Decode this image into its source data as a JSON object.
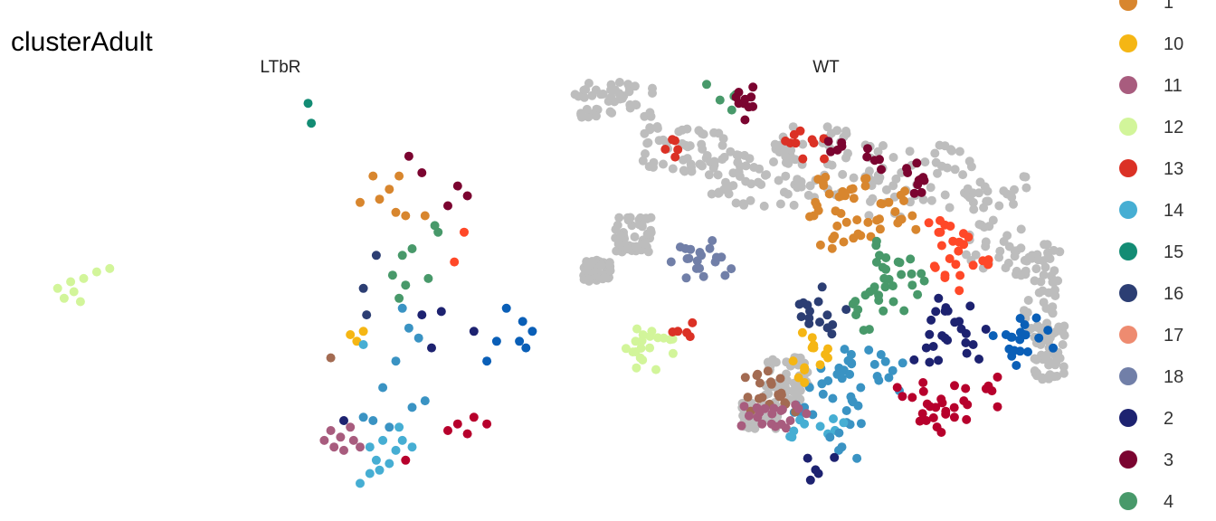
{
  "chart_data": {
    "type": "scatter",
    "title": "clusterAdult",
    "facets": [
      "LTbR",
      "WT"
    ],
    "xlabel": "",
    "ylabel": "",
    "grid": false,
    "background_color": "#bdbdbd",
    "legend_position": "right",
    "legend": [
      {
        "label": "1",
        "color": "#d8862e"
      },
      {
        "label": "10",
        "color": "#f5b614"
      },
      {
        "label": "11",
        "color": "#a85c7e"
      },
      {
        "label": "12",
        "color": "#d2f59a"
      },
      {
        "label": "13",
        "color": "#db3125"
      },
      {
        "label": "14",
        "color": "#46aed3"
      },
      {
        "label": "15",
        "color": "#138c74"
      },
      {
        "label": "16",
        "color": "#2c3e73"
      },
      {
        "label": "17",
        "color": "#ee8b70"
      },
      {
        "label": "18",
        "color": "#717fa8"
      },
      {
        "label": "2",
        "color": "#1d2270"
      },
      {
        "label": "3",
        "color": "#7b0430"
      },
      {
        "label": "4",
        "color": "#48996a"
      }
    ],
    "extra_colors": {
      "cluster_5": "#3a93c3",
      "cluster_6": "#0a5fb7",
      "cluster_7": "#b7002c",
      "cluster_8": "#a36b52",
      "cluster_9": "#ff4828"
    },
    "panels": [
      {
        "name": "LTbR",
        "points": [
          {
            "x": 10.5,
            "y": 9.2,
            "c": "#138c74"
          },
          {
            "x": 10.6,
            "y": 8.6,
            "c": "#138c74"
          },
          {
            "x": 2.8,
            "y": 3.6,
            "c": "#d2f59a"
          },
          {
            "x": 3.0,
            "y": 3.3,
            "c": "#d2f59a"
          },
          {
            "x": 3.3,
            "y": 3.5,
            "c": "#d2f59a"
          },
          {
            "x": 3.6,
            "y": 3.9,
            "c": "#d2f59a"
          },
          {
            "x": 4.0,
            "y": 4.1,
            "c": "#d2f59a"
          },
          {
            "x": 4.4,
            "y": 4.2,
            "c": "#d2f59a"
          },
          {
            "x": 3.5,
            "y": 3.2,
            "c": "#d2f59a"
          },
          {
            "x": 3.2,
            "y": 3.8,
            "c": "#d2f59a"
          },
          {
            "x": 13.6,
            "y": 7.6,
            "c": "#7b0430"
          },
          {
            "x": 14.0,
            "y": 7.1,
            "c": "#7b0430"
          },
          {
            "x": 15.1,
            "y": 6.7,
            "c": "#7b0430"
          },
          {
            "x": 15.4,
            "y": 6.4,
            "c": "#7b0430"
          },
          {
            "x": 14.8,
            "y": 6.1,
            "c": "#7b0430"
          },
          {
            "x": 12.5,
            "y": 7.0,
            "c": "#d8862e"
          },
          {
            "x": 13.3,
            "y": 7.0,
            "c": "#d8862e"
          },
          {
            "x": 13.0,
            "y": 6.6,
            "c": "#d8862e"
          },
          {
            "x": 12.1,
            "y": 6.2,
            "c": "#d8862e"
          },
          {
            "x": 12.7,
            "y": 6.3,
            "c": "#d8862e"
          },
          {
            "x": 13.5,
            "y": 5.8,
            "c": "#d8862e"
          },
          {
            "x": 14.1,
            "y": 5.8,
            "c": "#d8862e"
          },
          {
            "x": 13.2,
            "y": 5.9,
            "c": "#d8862e"
          },
          {
            "x": 14.4,
            "y": 5.5,
            "c": "#48996a"
          },
          {
            "x": 14.5,
            "y": 5.3,
            "c": "#48996a"
          },
          {
            "x": 13.7,
            "y": 4.8,
            "c": "#48996a"
          },
          {
            "x": 13.4,
            "y": 4.6,
            "c": "#48996a"
          },
          {
            "x": 13.1,
            "y": 4.0,
            "c": "#48996a"
          },
          {
            "x": 13.5,
            "y": 3.7,
            "c": "#48996a"
          },
          {
            "x": 14.2,
            "y": 3.9,
            "c": "#48996a"
          },
          {
            "x": 13.3,
            "y": 3.3,
            "c": "#48996a"
          },
          {
            "x": 12.6,
            "y": 4.6,
            "c": "#2c3e73"
          },
          {
            "x": 12.2,
            "y": 3.6,
            "c": "#2c3e73"
          },
          {
            "x": 12.3,
            "y": 2.8,
            "c": "#2c3e73"
          },
          {
            "x": 15.3,
            "y": 5.3,
            "c": "#ff4828"
          },
          {
            "x": 15.0,
            "y": 4.4,
            "c": "#ff4828"
          },
          {
            "x": 11.8,
            "y": 2.2,
            "c": "#f5b614"
          },
          {
            "x": 12.0,
            "y": 2.0,
            "c": "#f5b614"
          },
          {
            "x": 12.2,
            "y": 2.3,
            "c": "#f5b614"
          },
          {
            "x": 11.2,
            "y": 1.5,
            "c": "#a36b52"
          },
          {
            "x": 14.0,
            "y": 2.8,
            "c": "#1d2270"
          },
          {
            "x": 14.6,
            "y": 2.9,
            "c": "#1d2270"
          },
          {
            "x": 15.6,
            "y": 2.3,
            "c": "#1d2270"
          },
          {
            "x": 14.3,
            "y": 1.8,
            "c": "#1d2270"
          },
          {
            "x": 11.6,
            "y": -0.4,
            "c": "#1d2270"
          },
          {
            "x": 13.4,
            "y": 3.0,
            "c": "#3a93c3"
          },
          {
            "x": 13.6,
            "y": 2.4,
            "c": "#3a93c3"
          },
          {
            "x": 13.9,
            "y": 2.1,
            "c": "#3a93c3"
          },
          {
            "x": 13.2,
            "y": 1.4,
            "c": "#3a93c3"
          },
          {
            "x": 12.8,
            "y": 0.6,
            "c": "#3a93c3"
          },
          {
            "x": 13.7,
            "y": 0.0,
            "c": "#3a93c3"
          },
          {
            "x": 12.5,
            "y": -0.4,
            "c": "#3a93c3"
          },
          {
            "x": 13.0,
            "y": -0.6,
            "c": "#3a93c3"
          },
          {
            "x": 12.2,
            "y": -0.3,
            "c": "#3a93c3"
          },
          {
            "x": 14.1,
            "y": 0.2,
            "c": "#3a93c3"
          },
          {
            "x": 14.8,
            "y": -0.7,
            "c": "#b7002c"
          },
          {
            "x": 15.1,
            "y": -0.5,
            "c": "#b7002c"
          },
          {
            "x": 15.4,
            "y": -0.8,
            "c": "#b7002c"
          },
          {
            "x": 16.0,
            "y": -0.5,
            "c": "#b7002c"
          },
          {
            "x": 15.6,
            "y": -0.3,
            "c": "#b7002c"
          },
          {
            "x": 13.5,
            "y": -1.6,
            "c": "#b7002c"
          },
          {
            "x": 17.1,
            "y": 2.6,
            "c": "#0a5fb7"
          },
          {
            "x": 17.4,
            "y": 2.3,
            "c": "#0a5fb7"
          },
          {
            "x": 17.2,
            "y": 1.8,
            "c": "#0a5fb7"
          },
          {
            "x": 17.0,
            "y": 2.0,
            "c": "#0a5fb7"
          },
          {
            "x": 16.6,
            "y": 3.0,
            "c": "#0a5fb7"
          },
          {
            "x": 16.3,
            "y": 2.0,
            "c": "#0a5fb7"
          },
          {
            "x": 16.0,
            "y": 1.4,
            "c": "#0a5fb7"
          },
          {
            "x": 11.0,
            "y": -1.0,
            "c": "#a85c7e"
          },
          {
            "x": 11.3,
            "y": -1.2,
            "c": "#a85c7e"
          },
          {
            "x": 11.6,
            "y": -1.3,
            "c": "#a85c7e"
          },
          {
            "x": 11.9,
            "y": -1.0,
            "c": "#a85c7e"
          },
          {
            "x": 11.2,
            "y": -0.7,
            "c": "#a85c7e"
          },
          {
            "x": 11.8,
            "y": -0.6,
            "c": "#a85c7e"
          },
          {
            "x": 12.1,
            "y": -1.2,
            "c": "#a85c7e"
          },
          {
            "x": 11.5,
            "y": -0.9,
            "c": "#a85c7e"
          },
          {
            "x": 12.4,
            "y": -1.2,
            "c": "#46aed3"
          },
          {
            "x": 12.8,
            "y": -1.0,
            "c": "#46aed3"
          },
          {
            "x": 13.2,
            "y": -1.3,
            "c": "#46aed3"
          },
          {
            "x": 12.6,
            "y": -1.6,
            "c": "#46aed3"
          },
          {
            "x": 13.0,
            "y": -1.7,
            "c": "#46aed3"
          },
          {
            "x": 12.4,
            "y": -2.0,
            "c": "#46aed3"
          },
          {
            "x": 12.1,
            "y": -2.3,
            "c": "#46aed3"
          },
          {
            "x": 12.7,
            "y": -1.9,
            "c": "#46aed3"
          },
          {
            "x": 13.4,
            "y": -1.0,
            "c": "#46aed3"
          },
          {
            "x": 13.7,
            "y": -1.2,
            "c": "#46aed3"
          },
          {
            "x": 13.3,
            "y": -0.6,
            "c": "#46aed3"
          },
          {
            "x": 12.2,
            "y": 1.9,
            "c": "#46aed3"
          }
        ]
      },
      {
        "name": "WT",
        "points": [
          {
            "x": 14.2,
            "y": 9.3,
            "c": "#48996a"
          },
          {
            "x": 14.6,
            "y": 9.2,
            "c": "#7b0430"
          },
          {
            "x": 14.9,
            "y": 9.1,
            "c": "#7b0430"
          },
          {
            "x": 13.3,
            "y": 7.8,
            "c": "#db3125"
          },
          {
            "x": 15.7,
            "y": 8.0,
            "c": "#db3125"
          },
          {
            "x": 16.2,
            "y": 8.0,
            "c": "#db3125"
          },
          {
            "x": 16.8,
            "y": 7.9,
            "c": "#7b0430"
          },
          {
            "x": 17.6,
            "y": 7.5,
            "c": "#7b0430"
          },
          {
            "x": 18.2,
            "y": 7.1,
            "c": "#7b0430"
          },
          {
            "x": 18.5,
            "y": 6.5,
            "c": "#7b0430"
          },
          {
            "x": 16.4,
            "y": 6.8,
            "c": "#d8862e"
          },
          {
            "x": 16.8,
            "y": 6.4,
            "c": "#d8862e"
          },
          {
            "x": 17.3,
            "y": 6.7,
            "c": "#d8862e"
          },
          {
            "x": 17.8,
            "y": 6.2,
            "c": "#d8862e"
          },
          {
            "x": 16.2,
            "y": 5.8,
            "c": "#d8862e"
          },
          {
            "x": 16.9,
            "y": 5.6,
            "c": "#d8862e"
          },
          {
            "x": 17.6,
            "y": 5.7,
            "c": "#d8862e"
          },
          {
            "x": 18.3,
            "y": 5.8,
            "c": "#d8862e"
          },
          {
            "x": 16.6,
            "y": 5.1,
            "c": "#d8862e"
          },
          {
            "x": 17.2,
            "y": 5.2,
            "c": "#d8862e"
          },
          {
            "x": 18.9,
            "y": 5.3,
            "c": "#ff4828"
          },
          {
            "x": 19.3,
            "y": 5.0,
            "c": "#ff4828"
          },
          {
            "x": 19.1,
            "y": 4.5,
            "c": "#ff4828"
          },
          {
            "x": 19.6,
            "y": 4.3,
            "c": "#ff4828"
          },
          {
            "x": 19.0,
            "y": 4.0,
            "c": "#ff4828"
          },
          {
            "x": 17.6,
            "y": 4.6,
            "c": "#48996a"
          },
          {
            "x": 18.0,
            "y": 4.4,
            "c": "#48996a"
          },
          {
            "x": 17.7,
            "y": 3.9,
            "c": "#48996a"
          },
          {
            "x": 18.3,
            "y": 3.7,
            "c": "#48996a"
          },
          {
            "x": 17.9,
            "y": 3.2,
            "c": "#48996a"
          },
          {
            "x": 17.3,
            "y": 3.4,
            "c": "#48996a"
          },
          {
            "x": 17.1,
            "y": 2.8,
            "c": "#48996a"
          },
          {
            "x": 16.3,
            "y": 3.2,
            "c": "#2c3e73"
          },
          {
            "x": 16.1,
            "y": 2.7,
            "c": "#2c3e73"
          },
          {
            "x": 16.6,
            "y": 2.5,
            "c": "#2c3e73"
          },
          {
            "x": 18.8,
            "y": 2.9,
            "c": "#1d2270"
          },
          {
            "x": 19.3,
            "y": 2.6,
            "c": "#1d2270"
          },
          {
            "x": 19.0,
            "y": 2.1,
            "c": "#1d2270"
          },
          {
            "x": 19.6,
            "y": 1.9,
            "c": "#1d2270"
          },
          {
            "x": 18.6,
            "y": 1.8,
            "c": "#1d2270"
          },
          {
            "x": 20.7,
            "y": 2.5,
            "c": "#0a5fb7"
          },
          {
            "x": 21.0,
            "y": 2.1,
            "c": "#0a5fb7"
          },
          {
            "x": 20.6,
            "y": 1.7,
            "c": "#0a5fb7"
          },
          {
            "x": 20.3,
            "y": 2.2,
            "c": "#0a5fb7"
          },
          {
            "x": 17.0,
            "y": 1.6,
            "c": "#3a93c3"
          },
          {
            "x": 17.5,
            "y": 1.3,
            "c": "#3a93c3"
          },
          {
            "x": 16.7,
            "y": 1.0,
            "c": "#3a93c3"
          },
          {
            "x": 17.2,
            "y": 0.6,
            "c": "#3a93c3"
          },
          {
            "x": 16.4,
            "y": 0.4,
            "c": "#3a93c3"
          },
          {
            "x": 17.8,
            "y": 0.9,
            "c": "#3a93c3"
          },
          {
            "x": 16.0,
            "y": 0.0,
            "c": "#3a93c3"
          },
          {
            "x": 16.9,
            "y": -0.1,
            "c": "#3a93c3"
          },
          {
            "x": 18.3,
            "y": 0.3,
            "c": "#b7002c"
          },
          {
            "x": 18.8,
            "y": 0.0,
            "c": "#b7002c"
          },
          {
            "x": 19.4,
            "y": 0.2,
            "c": "#b7002c"
          },
          {
            "x": 20.0,
            "y": 0.5,
            "c": "#b7002c"
          },
          {
            "x": 18.6,
            "y": -0.4,
            "c": "#b7002c"
          },
          {
            "x": 19.2,
            "y": -0.3,
            "c": "#b7002c"
          },
          {
            "x": 16.2,
            "y": 1.8,
            "c": "#f5b614"
          },
          {
            "x": 16.5,
            "y": 1.5,
            "c": "#f5b614"
          },
          {
            "x": 16.0,
            "y": 1.2,
            "c": "#f5b614"
          },
          {
            "x": 15.0,
            "y": 1.0,
            "c": "#a36b52"
          },
          {
            "x": 15.3,
            "y": 0.7,
            "c": "#a36b52"
          },
          {
            "x": 15.1,
            "y": 0.3,
            "c": "#a36b52"
          },
          {
            "x": 15.6,
            "y": 0.1,
            "c": "#a36b52"
          },
          {
            "x": 15.0,
            "y": -0.3,
            "c": "#a85c7e"
          },
          {
            "x": 15.3,
            "y": -0.5,
            "c": "#a85c7e"
          },
          {
            "x": 15.7,
            "y": -0.4,
            "c": "#a85c7e"
          },
          {
            "x": 15.5,
            "y": -0.1,
            "c": "#a85c7e"
          },
          {
            "x": 16.0,
            "y": -0.5,
            "c": "#46aed3"
          },
          {
            "x": 16.5,
            "y": -0.8,
            "c": "#46aed3"
          },
          {
            "x": 16.8,
            "y": -1.2,
            "c": "#3a93c3"
          },
          {
            "x": 16.3,
            "y": -2.0,
            "c": "#1d2270"
          },
          {
            "x": 13.5,
            "y": 4.5,
            "c": "#717fa8"
          },
          {
            "x": 13.8,
            "y": 4.6,
            "c": "#717fa8"
          },
          {
            "x": 14.1,
            "y": 4.4,
            "c": "#717fa8"
          },
          {
            "x": 13.7,
            "y": 4.2,
            "c": "#717fa8"
          },
          {
            "x": 12.4,
            "y": 2.0,
            "c": "#d2f59a"
          },
          {
            "x": 12.7,
            "y": 1.8,
            "c": "#d2f59a"
          },
          {
            "x": 12.5,
            "y": 1.5,
            "c": "#d2f59a"
          },
          {
            "x": 13.0,
            "y": 2.1,
            "c": "#d2f59a"
          },
          {
            "x": 13.3,
            "y": 2.3,
            "c": "#db3125"
          }
        ]
      }
    ]
  }
}
